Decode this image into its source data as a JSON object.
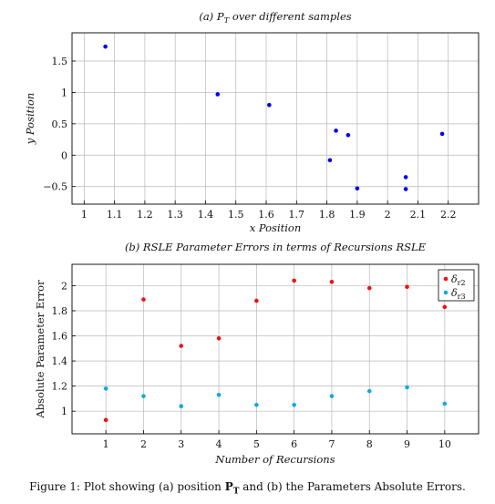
{
  "chart_data": [
    {
      "type": "scatter",
      "title": "(a) P_T over different samples",
      "title_main": "(a) P",
      "title_sub": "T",
      "title_rest": " over different samples",
      "xlabel": "x Position",
      "ylabel": "y Position",
      "xlim": [
        0.96,
        2.3
      ],
      "ylim": [
        -0.78,
        1.95
      ],
      "xticks": [
        "1",
        "1.1",
        "1.2",
        "1.3",
        "1.4",
        "1.5",
        "1.6",
        "1.7",
        "1.8",
        "1.9",
        "2",
        "2.1",
        "2.2"
      ],
      "xtick_values": [
        1,
        1.1,
        1.2,
        1.3,
        1.4,
        1.5,
        1.6,
        1.7,
        1.8,
        1.9,
        2,
        2.1,
        2.2
      ],
      "yticks": [
        "−0.5",
        "0",
        "0.5",
        "1",
        "1.5"
      ],
      "ytick_values": [
        -0.5,
        0,
        0.5,
        1,
        1.5
      ],
      "grid": true,
      "color": "#0000ee",
      "points": [
        {
          "x": 1.07,
          "y": 1.73
        },
        {
          "x": 1.44,
          "y": 0.97
        },
        {
          "x": 1.61,
          "y": 0.8
        },
        {
          "x": 1.81,
          "y": -0.08
        },
        {
          "x": 1.83,
          "y": 0.39
        },
        {
          "x": 1.87,
          "y": 0.32
        },
        {
          "x": 1.9,
          "y": -0.53
        },
        {
          "x": 2.06,
          "y": -0.54
        },
        {
          "x": 2.06,
          "y": -0.35
        },
        {
          "x": 2.18,
          "y": 0.34
        }
      ]
    },
    {
      "type": "scatter",
      "title": "(b) RSLE Parameter Errors in terms of Recursions RSLE",
      "xlabel": "Number of Recursions",
      "ylabel": "Absolute Parameter Error",
      "xlim": [
        0.1,
        10.9
      ],
      "ylim": [
        0.82,
        2.17
      ],
      "xticks": [
        "1",
        "2",
        "3",
        "4",
        "5",
        "6",
        "7",
        "8",
        "9",
        "10"
      ],
      "xtick_values": [
        1,
        2,
        3,
        4,
        5,
        6,
        7,
        8,
        9,
        10
      ],
      "yticks": [
        "1",
        "1.2",
        "1.4",
        "1.6",
        "1.8",
        "2"
      ],
      "ytick_values": [
        1,
        1.2,
        1.4,
        1.6,
        1.8,
        2
      ],
      "grid": true,
      "legend_position": "top-right",
      "x": [
        1,
        2,
        3,
        4,
        5,
        6,
        7,
        8,
        9,
        10
      ],
      "series": [
        {
          "name": "δr2",
          "symbol": "δ",
          "subscript": "r2",
          "color": "#ee1111",
          "values": [
            0.93,
            1.89,
            1.52,
            1.58,
            1.88,
            2.04,
            2.03,
            1.98,
            1.99,
            1.83
          ]
        },
        {
          "name": "δr3",
          "symbol": "δ",
          "subscript": "r3",
          "color": "#11aadd",
          "values": [
            1.18,
            1.12,
            1.04,
            1.13,
            1.05,
            1.05,
            1.12,
            1.16,
            1.19,
            1.06
          ]
        }
      ]
    }
  ],
  "caption": {
    "prefix": "Figure 1: Plot showing (a) position ",
    "bold": "P",
    "bold_sub": "T",
    "suffix": " and (b) the Parameters Absolute Errors."
  }
}
